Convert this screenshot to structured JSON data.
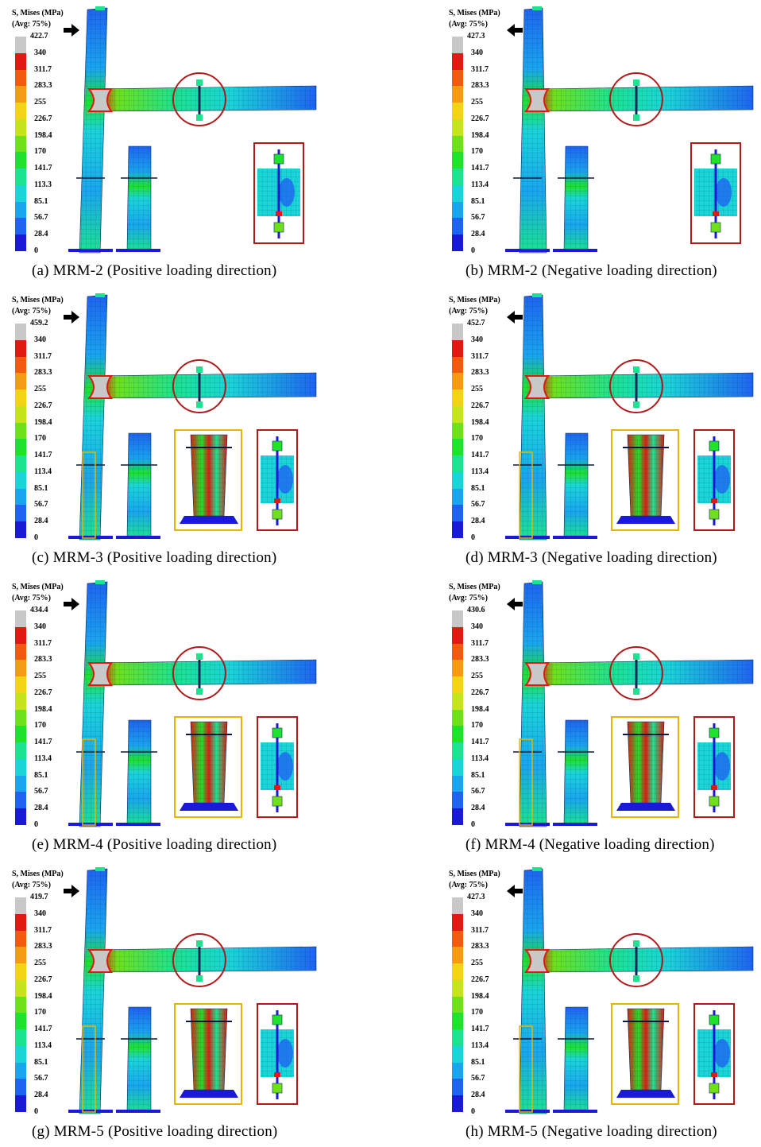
{
  "legend": {
    "title_line1": "S, Mises (MPa)",
    "title_line2": "(Avg: 75%)",
    "colors": [
      "#1a1ad6",
      "#1e64f0",
      "#19a6ef",
      "#1ad5d8",
      "#1be38f",
      "#1fe22c",
      "#6ee11b",
      "#c6e31b",
      "#f2d316",
      "#f59a12",
      "#f25a10",
      "#e01a10",
      "#c8c8c8"
    ]
  },
  "panels": [
    {
      "caption": "(a) MRM-2 (Positive loading direction)",
      "max": "422.7",
      "ticks": [
        "340",
        "311.7",
        "283.3",
        "255",
        "226.7",
        "198.4",
        "170",
        "141.7",
        "113.3",
        "85.1",
        "56.7",
        "28.4",
        "0"
      ],
      "direction": "positive",
      "detail": "single"
    },
    {
      "caption": "(b) MRM-2 (Negative loading direction)",
      "max": "427.3",
      "ticks": [
        "340",
        "311.7",
        "283.3",
        "255",
        "226.7",
        "198.4",
        "170",
        "141.7",
        "113.4",
        "85.1",
        "56.7",
        "28.4",
        "0"
      ],
      "direction": "negative",
      "detail": "single"
    },
    {
      "caption": "(c) MRM-3 (Positive loading direction)",
      "max": "459.2",
      "ticks": [
        "340",
        "311.7",
        "283.3",
        "255",
        "226.7",
        "198.4",
        "170",
        "141.7",
        "113.4",
        "85.1",
        "56.7",
        "28.4",
        "0"
      ],
      "direction": "positive",
      "detail": "double"
    },
    {
      "caption": "(d) MRM-3 (Negative loading direction)",
      "max": "452.7",
      "ticks": [
        "340",
        "311.7",
        "283.3",
        "255",
        "226.7",
        "198.4",
        "170",
        "141.7",
        "113.4",
        "85.1",
        "56.7",
        "28.4",
        "0"
      ],
      "direction": "negative",
      "detail": "double"
    },
    {
      "caption": "(e) MRM-4 (Positive loading direction)",
      "max": "434.4",
      "ticks": [
        "340",
        "311.7",
        "283.3",
        "255",
        "226.7",
        "198.4",
        "170",
        "141.7",
        "113.4",
        "85.1",
        "56.7",
        "28.4",
        "0"
      ],
      "direction": "positive",
      "detail": "double"
    },
    {
      "caption": "(f) MRM-4 (Negative loading direction)",
      "max": "430.6",
      "ticks": [
        "340",
        "311.7",
        "283.3",
        "255",
        "226.7",
        "198.4",
        "170",
        "141.7",
        "113.4",
        "85.1",
        "56.7",
        "28.4",
        "0"
      ],
      "direction": "negative",
      "detail": "double"
    },
    {
      "caption": "(g) MRM-5 (Positive loading direction)",
      "max": "419.7",
      "ticks": [
        "340",
        "311.7",
        "283.3",
        "255",
        "226.7",
        "198.4",
        "170",
        "141.7",
        "113.4",
        "85.1",
        "56.7",
        "28.4",
        "0"
      ],
      "direction": "positive",
      "detail": "double"
    },
    {
      "caption": "(h) MRM-5 (Negative loading direction)",
      "max": "427.3",
      "ticks": [
        "340",
        "311.7",
        "283.3",
        "255",
        "226.7",
        "198.4",
        "170",
        "141.7",
        "113.4",
        "85.1",
        "56.7",
        "28.4",
        "0"
      ],
      "direction": "negative",
      "detail": "double"
    }
  ]
}
